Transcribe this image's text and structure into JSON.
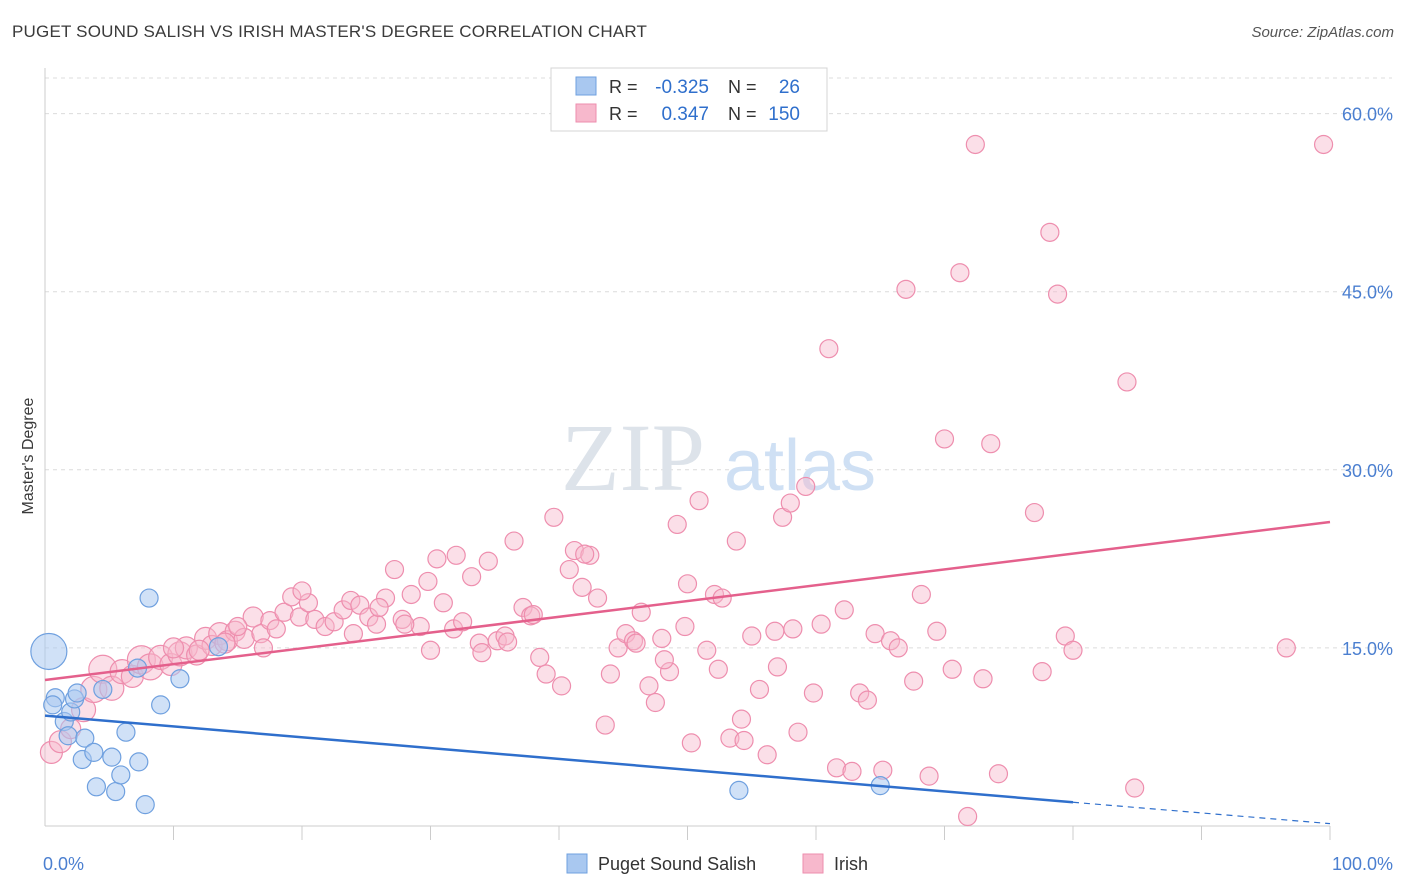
{
  "header": {
    "title": "PUGET SOUND SALISH VS IRISH MASTER'S DEGREE CORRELATION CHART",
    "source": "Source: ZipAtlas.com"
  },
  "watermark": {
    "zip": "ZIP",
    "atlas": "atlas"
  },
  "legend_top": {
    "rows": [
      {
        "r_label": "R =",
        "r_value": "-0.325",
        "n_label": "N =",
        "n_value": "26"
      },
      {
        "r_label": "R =",
        "r_value": "0.347",
        "n_label": "N =",
        "n_value": "150"
      }
    ]
  },
  "colors": {
    "blue_fill": "#a9c8f0",
    "blue_stroke": "#6fa0df",
    "blue_line": "#2f6fcc",
    "pink_fill": "#f7b8cc",
    "pink_stroke": "#ee8eae",
    "pink_line": "#e4608c",
    "axis_text": "#4b7fd0",
    "grid": "#dcdcdc"
  },
  "chart_data": {
    "type": "scatter",
    "title": "PUGET SOUND SALISH VS IRISH MASTER'S DEGREE CORRELATION CHART",
    "xlabel": "",
    "ylabel": "Master's Degree",
    "xlim": [
      0,
      100
    ],
    "ylim": [
      0,
      63
    ],
    "x_tick_labels": [
      "0.0%",
      "100.0%"
    ],
    "y_ticks": [
      15,
      30,
      45,
      60
    ],
    "y_tick_labels": [
      "15.0%",
      "30.0%",
      "45.0%",
      "60.0%"
    ],
    "grid": true,
    "legend_placement": "bottom-center",
    "series": [
      {
        "name": "Puget Sound Salish",
        "r": -0.325,
        "n": 26,
        "trend": {
          "x0": 0,
          "y0": 9.3,
          "x1": 80,
          "y1": 2.0,
          "dash_to_x": 100,
          "dash_to_y": 0.2
        },
        "points": [
          [
            0.3,
            14.7,
            18
          ],
          [
            0.8,
            10.8,
            9
          ],
          [
            1.5,
            8.8,
            9
          ],
          [
            1.8,
            7.6,
            9
          ],
          [
            2.0,
            9.6,
            9
          ],
          [
            2.3,
            10.7,
            9
          ],
          [
            2.5,
            11.2,
            9
          ],
          [
            2.9,
            5.6,
            9
          ],
          [
            3.1,
            7.4,
            9
          ],
          [
            3.8,
            6.2,
            9
          ],
          [
            4.0,
            3.3,
            9
          ],
          [
            4.5,
            11.5,
            9
          ],
          [
            5.2,
            5.8,
            9
          ],
          [
            5.5,
            2.9,
            9
          ],
          [
            5.9,
            4.3,
            9
          ],
          [
            6.3,
            7.9,
            9
          ],
          [
            7.2,
            13.3,
            9
          ],
          [
            7.3,
            5.4,
            9
          ],
          [
            7.8,
            1.8,
            9
          ],
          [
            8.1,
            19.2,
            9
          ],
          [
            9.0,
            10.2,
            9
          ],
          [
            10.5,
            12.4,
            9
          ],
          [
            13.5,
            15.1,
            9
          ],
          [
            54.0,
            3.0,
            9
          ],
          [
            65.0,
            3.4,
            9
          ],
          [
            0.6,
            10.2,
            9
          ]
        ]
      },
      {
        "name": "Irish",
        "r": 0.347,
        "n": 150,
        "trend": {
          "x0": 0,
          "y0": 12.3,
          "x1": 100,
          "y1": 25.6
        },
        "points": [
          [
            0.5,
            6.2,
            11
          ],
          [
            1.2,
            7.1,
            11
          ],
          [
            2.0,
            8.2,
            10
          ],
          [
            3.0,
            9.8,
            12
          ],
          [
            3.8,
            11.5,
            13
          ],
          [
            4.5,
            13.2,
            14
          ],
          [
            5.2,
            11.6,
            12
          ],
          [
            6.0,
            13.0,
            12
          ],
          [
            6.8,
            12.6,
            11
          ],
          [
            7.5,
            14.0,
            14
          ],
          [
            8.2,
            13.4,
            13
          ],
          [
            9.0,
            14.2,
            12
          ],
          [
            9.8,
            13.6,
            11
          ],
          [
            10.5,
            14.5,
            12
          ],
          [
            11.0,
            15.0,
            11
          ],
          [
            11.8,
            14.4,
            10
          ],
          [
            12.5,
            15.8,
            11
          ],
          [
            13.0,
            15.2,
            10
          ],
          [
            13.6,
            16.2,
            11
          ],
          [
            14.2,
            15.6,
            10
          ],
          [
            14.8,
            16.4,
            10
          ],
          [
            15.5,
            15.8,
            10
          ],
          [
            16.2,
            17.6,
            10
          ],
          [
            16.8,
            16.2,
            9
          ],
          [
            17.5,
            17.3,
            9
          ],
          [
            18.0,
            16.6,
            9
          ],
          [
            18.6,
            18.0,
            9
          ],
          [
            19.2,
            19.3,
            9
          ],
          [
            19.8,
            17.6,
            9
          ],
          [
            20.5,
            18.8,
            9
          ],
          [
            21.0,
            17.4,
            9
          ],
          [
            21.8,
            16.8,
            9
          ],
          [
            22.5,
            17.2,
            9
          ],
          [
            23.2,
            18.2,
            9
          ],
          [
            23.8,
            19.0,
            9
          ],
          [
            24.5,
            18.6,
            9
          ],
          [
            25.2,
            17.6,
            9
          ],
          [
            25.8,
            17.0,
            9
          ],
          [
            26.5,
            19.2,
            9
          ],
          [
            27.2,
            21.6,
            9
          ],
          [
            27.8,
            17.4,
            9
          ],
          [
            28.5,
            19.5,
            9
          ],
          [
            29.2,
            16.8,
            9
          ],
          [
            29.8,
            20.6,
            9
          ],
          [
            30.5,
            22.5,
            9
          ],
          [
            31.0,
            18.8,
            9
          ],
          [
            31.8,
            16.6,
            9
          ],
          [
            32.5,
            17.2,
            9
          ],
          [
            33.2,
            21.0,
            9
          ],
          [
            33.8,
            15.4,
            9
          ],
          [
            34.5,
            22.3,
            9
          ],
          [
            35.2,
            15.6,
            9
          ],
          [
            35.8,
            16.0,
            9
          ],
          [
            36.5,
            24.0,
            9
          ],
          [
            37.2,
            18.4,
            9
          ],
          [
            37.8,
            17.7,
            9
          ],
          [
            38.5,
            14.2,
            9
          ],
          [
            39.0,
            12.8,
            9
          ],
          [
            39.6,
            26.0,
            9
          ],
          [
            40.2,
            11.8,
            9
          ],
          [
            40.8,
            21.6,
            9
          ],
          [
            41.2,
            23.2,
            9
          ],
          [
            41.8,
            20.1,
            9
          ],
          [
            42.4,
            22.8,
            9
          ],
          [
            43.0,
            19.2,
            9
          ],
          [
            43.6,
            8.5,
            9
          ],
          [
            44.0,
            12.8,
            9
          ],
          [
            44.6,
            15.0,
            9
          ],
          [
            45.2,
            16.2,
            9
          ],
          [
            45.8,
            15.6,
            9
          ],
          [
            46.4,
            18.0,
            9
          ],
          [
            47.0,
            11.8,
            9
          ],
          [
            47.5,
            10.4,
            9
          ],
          [
            48.0,
            15.8,
            9
          ],
          [
            48.6,
            13.0,
            9
          ],
          [
            49.2,
            25.4,
            9
          ],
          [
            49.8,
            16.8,
            9
          ],
          [
            50.3,
            7.0,
            9
          ],
          [
            50.9,
            27.4,
            9
          ],
          [
            51.5,
            14.8,
            9
          ],
          [
            52.1,
            19.5,
            9
          ],
          [
            52.7,
            19.2,
            9
          ],
          [
            53.3,
            7.4,
            9
          ],
          [
            53.8,
            24.0,
            9
          ],
          [
            54.4,
            7.2,
            9
          ],
          [
            55.0,
            16.0,
            9
          ],
          [
            55.6,
            11.5,
            9
          ],
          [
            56.2,
            6.0,
            9
          ],
          [
            56.8,
            16.4,
            9
          ],
          [
            57.4,
            26.0,
            9
          ],
          [
            58.0,
            27.2,
            9
          ],
          [
            58.6,
            7.9,
            9
          ],
          [
            59.2,
            28.6,
            9
          ],
          [
            59.8,
            11.2,
            9
          ],
          [
            60.4,
            17.0,
            9
          ],
          [
            61.0,
            40.2,
            9
          ],
          [
            61.6,
            4.9,
            9
          ],
          [
            62.2,
            18.2,
            9
          ],
          [
            62.8,
            4.6,
            9
          ],
          [
            63.4,
            11.2,
            9
          ],
          [
            64.0,
            10.6,
            9
          ],
          [
            64.6,
            16.2,
            9
          ],
          [
            65.2,
            4.7,
            9
          ],
          [
            65.8,
            15.6,
            9
          ],
          [
            66.4,
            15.0,
            9
          ],
          [
            67.0,
            45.2,
            9
          ],
          [
            67.6,
            12.2,
            9
          ],
          [
            68.2,
            19.5,
            9
          ],
          [
            68.8,
            4.2,
            9
          ],
          [
            69.4,
            16.4,
            9
          ],
          [
            70.0,
            32.6,
            9
          ],
          [
            70.6,
            13.2,
            9
          ],
          [
            71.2,
            46.6,
            9
          ],
          [
            71.8,
            0.8,
            9
          ],
          [
            72.4,
            57.4,
            9
          ],
          [
            73.0,
            12.4,
            9
          ],
          [
            73.6,
            32.2,
            9
          ],
          [
            74.2,
            4.4,
            9
          ],
          [
            77.0,
            26.4,
            9
          ],
          [
            77.6,
            13.0,
            9
          ],
          [
            78.2,
            50.0,
            9
          ],
          [
            78.8,
            44.8,
            9
          ],
          [
            79.4,
            16.0,
            9
          ],
          [
            80.0,
            14.8,
            9
          ],
          [
            84.2,
            37.4,
            9
          ],
          [
            84.8,
            3.2,
            9
          ],
          [
            96.6,
            15.0,
            9
          ],
          [
            99.5,
            57.4,
            9
          ],
          [
            10.0,
            15.0,
            10
          ],
          [
            12.0,
            14.8,
            10
          ],
          [
            14.0,
            15.4,
            10
          ],
          [
            15.0,
            16.8,
            9
          ],
          [
            17.0,
            15.0,
            9
          ],
          [
            20.0,
            19.8,
            9
          ],
          [
            24.0,
            16.2,
            9
          ],
          [
            26.0,
            18.4,
            9
          ],
          [
            28.0,
            17.0,
            9
          ],
          [
            30.0,
            14.8,
            9
          ],
          [
            32.0,
            22.8,
            9
          ],
          [
            34.0,
            14.6,
            9
          ],
          [
            36.0,
            15.5,
            9
          ],
          [
            38.0,
            17.8,
            9
          ],
          [
            42.0,
            22.9,
            9
          ],
          [
            46.0,
            15.4,
            9
          ],
          [
            48.2,
            14.0,
            9
          ],
          [
            50.0,
            20.4,
            9
          ],
          [
            52.4,
            13.2,
            9
          ],
          [
            54.2,
            9.0,
            9
          ],
          [
            57.0,
            13.4,
            9
          ],
          [
            58.2,
            16.6,
            9
          ]
        ]
      }
    ]
  },
  "legend_bottom": {
    "items": [
      {
        "label": "Puget Sound Salish"
      },
      {
        "label": "Irish"
      }
    ]
  }
}
